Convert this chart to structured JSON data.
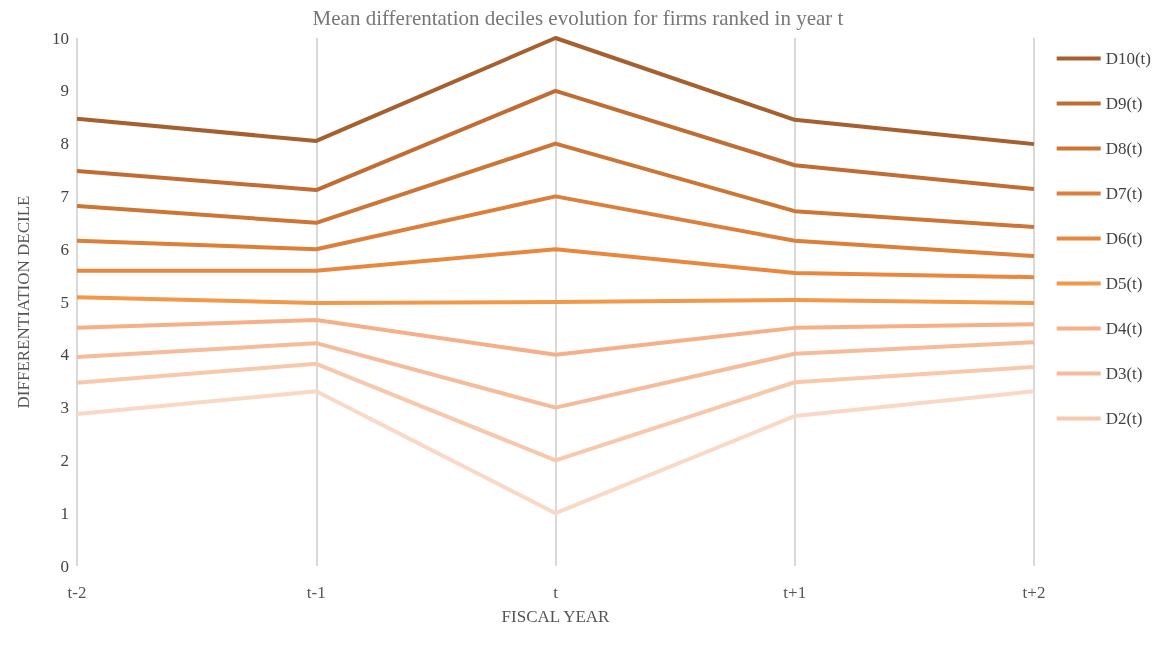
{
  "chart_data": {
    "type": "line",
    "title": "Mean differentation deciles evolution for firms ranked in year t",
    "xlabel": "FISCAL YEAR",
    "ylabel": "DIFFERENTIATION DECILE",
    "categories": [
      "t-2",
      "t-1",
      "t",
      "t+1",
      "t+2"
    ],
    "ylim": [
      0,
      10
    ],
    "yticks": [
      0,
      1,
      2,
      3,
      4,
      5,
      6,
      7,
      8,
      9,
      10
    ],
    "grid": "x",
    "legend": "right",
    "marker": "none",
    "line_style": "solid",
    "series": [
      {
        "name": "D10(t)",
        "color": "#a65f2e",
        "values": [
          8.47,
          8.05,
          10,
          8.45,
          7.99
        ]
      },
      {
        "name": "D9(t)",
        "color": "#c06c33",
        "values": [
          7.48,
          7.12,
          9,
          7.59,
          7.14
        ]
      },
      {
        "name": "D8(t)",
        "color": "#cc7535",
        "values": [
          6.82,
          6.5,
          8,
          6.72,
          6.42
        ]
      },
      {
        "name": "D7(t)",
        "color": "#dc7f3a",
        "values": [
          6.16,
          6.0,
          7,
          6.16,
          5.87
        ]
      },
      {
        "name": "D6(t)",
        "color": "#e8883e",
        "values": [
          5.59,
          5.59,
          6,
          5.55,
          5.47
        ]
      },
      {
        "name": "D5(t)",
        "color": "#f0994a",
        "values": [
          5.09,
          4.98,
          5,
          5.04,
          4.98
        ]
      },
      {
        "name": "D4(t)",
        "color": "#f5b08a",
        "values": [
          4.51,
          4.66,
          4,
          4.51,
          4.58
        ]
      },
      {
        "name": "D3(t)",
        "color": "#f6bb9a",
        "values": [
          3.96,
          4.22,
          3,
          4.02,
          4.24
        ]
      },
      {
        "name": "D2(t)",
        "color": "#f8c8ad",
        "values": [
          3.47,
          3.83,
          2,
          3.48,
          3.77
        ]
      },
      {
        "color": "#fad8c6",
        "values": [
          2.88,
          3.31,
          1,
          2.84,
          3.31
        ]
      }
    ]
  }
}
